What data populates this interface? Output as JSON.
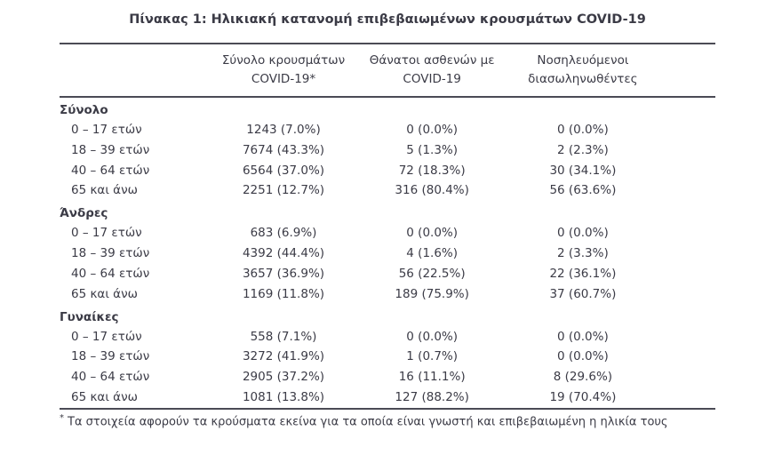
{
  "title": "Πίνακας 1: Ηλικιακή κατανομή επιβεβαιωμένων κρουσμάτων COVID-19",
  "table": {
    "columns": {
      "label": "",
      "cases": "Σύνολο κρουσμάτων\nCOVID-19*",
      "deaths": "Θάνατοι ασθενών με\nCOVID-19",
      "intubated": "Νοσηλευόμενοι\nδιασωληνωθέντες"
    },
    "sections": [
      {
        "label": "Σύνολο",
        "rows": [
          {
            "age": "0 – 17 ετών",
            "cases": "1243 (7.0%)",
            "deaths": "0 (0.0%)",
            "intubated": "0 (0.0%)"
          },
          {
            "age": "18 – 39 ετών",
            "cases": "7674 (43.3%)",
            "deaths": "5 (1.3%)",
            "intubated": "2 (2.3%)"
          },
          {
            "age": "40 – 64 ετών",
            "cases": "6564 (37.0%)",
            "deaths": "72 (18.3%)",
            "intubated": "30 (34.1%)"
          },
          {
            "age": "65 και άνω",
            "cases": "2251 (12.7%)",
            "deaths": "316 (80.4%)",
            "intubated": "56 (63.6%)"
          }
        ]
      },
      {
        "label": "Άνδρες",
        "rows": [
          {
            "age": "0 – 17 ετών",
            "cases": "683 (6.9%)",
            "deaths": "0 (0.0%)",
            "intubated": "0 (0.0%)"
          },
          {
            "age": "18 – 39 ετών",
            "cases": "4392 (44.4%)",
            "deaths": "4 (1.6%)",
            "intubated": "2 (3.3%)"
          },
          {
            "age": "40 – 64 ετών",
            "cases": "3657 (36.9%)",
            "deaths": "56 (22.5%)",
            "intubated": "22 (36.1%)"
          },
          {
            "age": "65 και άνω",
            "cases": "1169 (11.8%)",
            "deaths": "189 (75.9%)",
            "intubated": "37 (60.7%)"
          }
        ]
      },
      {
        "label": "Γυναίκες",
        "rows": [
          {
            "age": "0 – 17 ετών",
            "cases": "558 (7.1%)",
            "deaths": "0 (0.0%)",
            "intubated": "0 (0.0%)"
          },
          {
            "age": "18 – 39 ετών",
            "cases": "3272 (41.9%)",
            "deaths": "1 (0.7%)",
            "intubated": "0 (0.0%)"
          },
          {
            "age": "40 – 64 ετών",
            "cases": "2905 (37.2%)",
            "deaths": "16 (11.1%)",
            "intubated": "8 (29.6%)"
          },
          {
            "age": "65 και άνω",
            "cases": "1081 (13.8%)",
            "deaths": "127 (88.2%)",
            "intubated": "19 (70.4%)"
          }
        ]
      }
    ]
  },
  "footnote": {
    "marker": "*",
    "text": "Τα στοιχεία αφορούν τα κρούσματα εκείνα για τα οποία είναι γνωστή και επιβεβαιωμένη η ηλικία τους"
  },
  "colors": {
    "text": "#3b3b46",
    "rule": "#4b4b55",
    "background": "#ffffff"
  }
}
